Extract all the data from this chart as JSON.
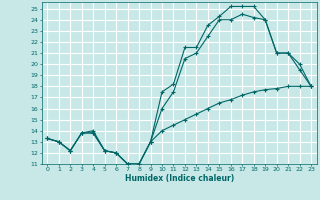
{
  "xlabel": "Humidex (Indice chaleur)",
  "bg_color": "#c8e8e8",
  "grid_color": "#ffffff",
  "line_color": "#006666",
  "xlim": [
    -0.5,
    23.5
  ],
  "ylim": [
    11,
    25.6
  ],
  "yticks": [
    11,
    12,
    13,
    14,
    15,
    16,
    17,
    18,
    19,
    20,
    21,
    22,
    23,
    24,
    25
  ],
  "xticks": [
    0,
    1,
    2,
    3,
    4,
    5,
    6,
    7,
    8,
    9,
    10,
    11,
    12,
    13,
    14,
    15,
    16,
    17,
    18,
    19,
    20,
    21,
    22,
    23
  ],
  "line1_x": [
    0,
    1,
    2,
    3,
    4,
    5,
    6,
    7,
    8,
    9,
    10,
    11,
    12,
    13,
    14,
    15,
    16,
    17,
    18,
    19,
    20,
    21,
    22,
    23
  ],
  "line1_y": [
    13.3,
    13.0,
    12.2,
    13.8,
    14.0,
    12.2,
    12.0,
    11.0,
    11.0,
    13.0,
    14.0,
    14.5,
    15.0,
    15.5,
    16.0,
    16.5,
    16.8,
    17.2,
    17.5,
    17.7,
    17.8,
    18.0,
    18.0,
    18.0
  ],
  "line2_x": [
    0,
    1,
    2,
    3,
    4,
    5,
    6,
    7,
    8,
    9,
    10,
    11,
    12,
    13,
    14,
    15,
    16,
    17,
    18,
    19,
    20,
    21,
    22,
    23
  ],
  "line2_y": [
    13.3,
    13.0,
    12.2,
    13.8,
    13.8,
    12.2,
    12.0,
    11.0,
    11.0,
    13.0,
    17.5,
    18.2,
    21.5,
    21.5,
    23.5,
    24.3,
    25.2,
    25.2,
    25.2,
    24.0,
    21.0,
    21.0,
    19.5,
    18.0
  ],
  "line3_x": [
    0,
    1,
    2,
    3,
    4,
    5,
    6,
    7,
    8,
    9,
    10,
    11,
    12,
    13,
    14,
    15,
    16,
    17,
    18,
    19,
    20,
    21,
    22,
    23
  ],
  "line3_y": [
    13.3,
    13.0,
    12.2,
    13.8,
    13.8,
    12.2,
    12.0,
    11.0,
    11.0,
    13.0,
    16.0,
    17.5,
    20.5,
    21.0,
    22.5,
    24.0,
    24.0,
    24.5,
    24.2,
    24.0,
    21.0,
    21.0,
    20.0,
    18.0
  ]
}
